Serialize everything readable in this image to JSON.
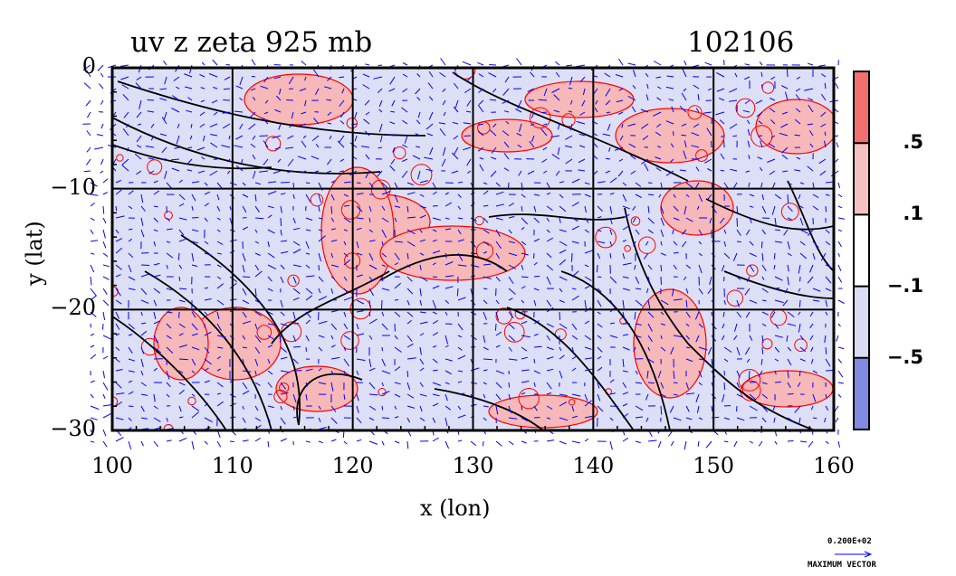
{
  "title": {
    "left": "uv  z  zeta  925  mb",
    "right": "102106"
  },
  "chart_data": {
    "type": "heatmap",
    "title": "uv z zeta 925 mb",
    "date_label": "102106",
    "xlabel": "x (lon)",
    "ylabel": "y (lat)",
    "xlim": [
      100,
      160
    ],
    "ylim": [
      -30,
      0
    ],
    "x_ticks": [
      "100",
      "110",
      "120",
      "130",
      "140",
      "150",
      "160"
    ],
    "y_ticks": [
      "0",
      "−10",
      "−20",
      "−30"
    ],
    "x_tick_values": [
      100,
      110,
      120,
      130,
      140,
      150,
      160
    ],
    "y_tick_values": [
      0,
      -10,
      -20,
      -30
    ],
    "grid": true,
    "colorbar": {
      "levels": [
        -0.5,
        -0.1,
        0.1,
        0.5
      ],
      "labels": [
        ".5",
        ".1",
        "−.1",
        "−.5"
      ],
      "colors": [
        "#f07070",
        "#f6c0c0",
        "#ffffff",
        "#d8dcf4",
        "#7f8ae0"
      ]
    },
    "contour_color": "#000000",
    "vector_color": "#0000ff",
    "positive_contour_color": "#ff0000",
    "vector_key": {
      "magnitude_label": "0.200E+02",
      "label": "MAXIMUM VECTOR"
    }
  },
  "colors": {
    "land_fill": "#dcdff5",
    "positive_fill": "#f6b8b8",
    "text": "#000000"
  }
}
